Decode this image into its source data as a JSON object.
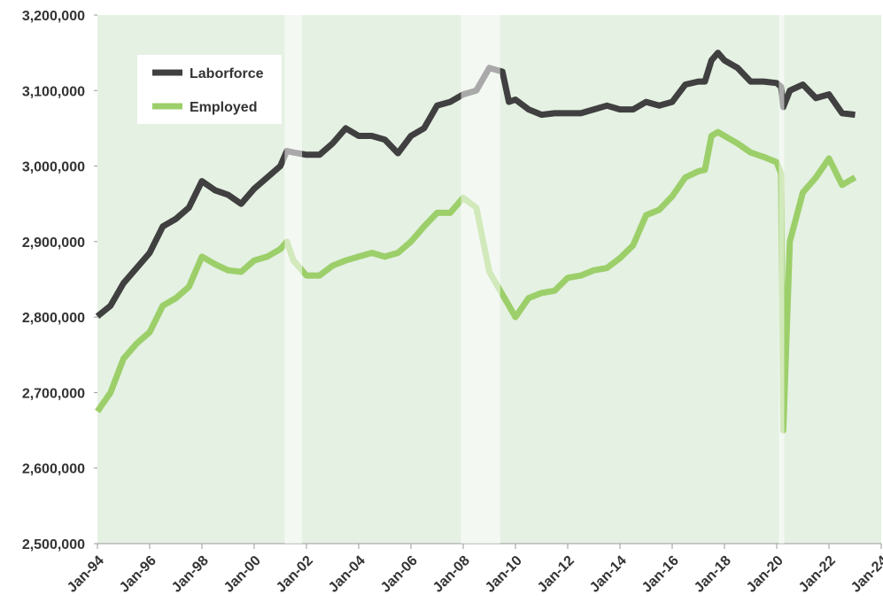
{
  "chart_data": {
    "type": "line",
    "x": [
      "Jan-94",
      "Jul-94",
      "Jan-95",
      "Jul-95",
      "Jan-96",
      "Jul-96",
      "Jan-97",
      "Jul-97",
      "Jan-98",
      "Jul-98",
      "Jan-99",
      "Jul-99",
      "Jan-00",
      "Jul-00",
      "Jan-01",
      "Apr-01",
      "Jul-01",
      "Jan-02",
      "Jul-02",
      "Jan-03",
      "Jul-03",
      "Jan-04",
      "Jul-04",
      "Jan-05",
      "Jul-05",
      "Jan-06",
      "Jul-06",
      "Jan-07",
      "Jul-07",
      "Jan-08",
      "Jul-08",
      "Jan-09",
      "Jul-09",
      "Oct-09",
      "Jan-10",
      "Jul-10",
      "Jan-11",
      "Jul-11",
      "Jan-12",
      "Jul-12",
      "Jan-13",
      "Jul-13",
      "Jan-14",
      "Jul-14",
      "Jan-15",
      "Jul-15",
      "Jan-16",
      "Jul-16",
      "Jan-17",
      "Apr-17",
      "Jul-17",
      "Oct-17",
      "Jan-18",
      "Jul-18",
      "Jan-19",
      "Jul-19",
      "Jan-20",
      "Mar-20",
      "Apr-20",
      "Jul-20",
      "Jan-21",
      "Jul-21",
      "Jan-22",
      "Jul-22",
      "Jan-23"
    ],
    "series": [
      {
        "name": "Laborforce",
        "color": "#404040",
        "values": [
          2801000,
          2815000,
          2845000,
          2865000,
          2885000,
          2920000,
          2930000,
          2945000,
          2980000,
          2968000,
          2962000,
          2950000,
          2970000,
          2985000,
          3000000,
          3020000,
          3018000,
          3015000,
          3015000,
          3030000,
          3050000,
          3040000,
          3040000,
          3035000,
          3017000,
          3040000,
          3050000,
          3080000,
          3085000,
          3095000,
          3100000,
          3130000,
          3125000,
          3085000,
          3088000,
          3075000,
          3068000,
          3070000,
          3070000,
          3070000,
          3075000,
          3080000,
          3075000,
          3075000,
          3085000,
          3080000,
          3085000,
          3108000,
          3112000,
          3112000,
          3140000,
          3150000,
          3140000,
          3130000,
          3112000,
          3112000,
          3110000,
          3105000,
          3078000,
          3100000,
          3108000,
          3090000,
          3095000,
          3070000,
          3068000
        ]
      },
      {
        "name": "Employed",
        "color": "#9ccf6a",
        "values": [
          2675000,
          2700000,
          2745000,
          2765000,
          2780000,
          2815000,
          2825000,
          2840000,
          2880000,
          2870000,
          2862000,
          2860000,
          2875000,
          2880000,
          2890000,
          2900000,
          2875000,
          2855000,
          2855000,
          2868000,
          2875000,
          2880000,
          2885000,
          2880000,
          2885000,
          2900000,
          2920000,
          2938000,
          2938000,
          2958000,
          2945000,
          2860000,
          2830000,
          2815000,
          2800000,
          2825000,
          2832000,
          2835000,
          2852000,
          2855000,
          2862000,
          2865000,
          2878000,
          2895000,
          2935000,
          2942000,
          2960000,
          2985000,
          2993000,
          2995000,
          3040000,
          3045000,
          3040000,
          3030000,
          3018000,
          3012000,
          3005000,
          2990000,
          2650000,
          2900000,
          2965000,
          2985000,
          3010000,
          2975000,
          2985000
        ]
      }
    ],
    "recessions": [
      [
        "Mar-01",
        "Nov-01"
      ],
      [
        "Dec-07",
        "Jun-09"
      ],
      [
        "Feb-20",
        "Apr-20"
      ]
    ],
    "xlim": [
      "Jan-94",
      "Jan-24"
    ],
    "xticks": [
      "Jan-94",
      "Jan-96",
      "Jan-98",
      "Jan-00",
      "Jan-02",
      "Jan-04",
      "Jan-06",
      "Jan-08",
      "Jan-10",
      "Jan-12",
      "Jan-14",
      "Jan-16",
      "Jan-18",
      "Jan-20",
      "Jan-22",
      "Jan-24"
    ],
    "ylim": [
      2500000,
      3200000
    ],
    "yticks": [
      {
        "value": 2500000,
        "label": "2,500,000"
      },
      {
        "value": 2600000,
        "label": "2,600,000"
      },
      {
        "value": 2700000,
        "label": "2,700,000"
      },
      {
        "value": 2800000,
        "label": "2,800,000"
      },
      {
        "value": 2900000,
        "label": "2,900,000"
      },
      {
        "value": 3000000,
        "label": "3,000,000"
      },
      {
        "value": 3100000,
        "label": "3,100,000"
      },
      {
        "value": 3200000,
        "label": "3,200,000"
      }
    ],
    "legend": "top-left"
  }
}
